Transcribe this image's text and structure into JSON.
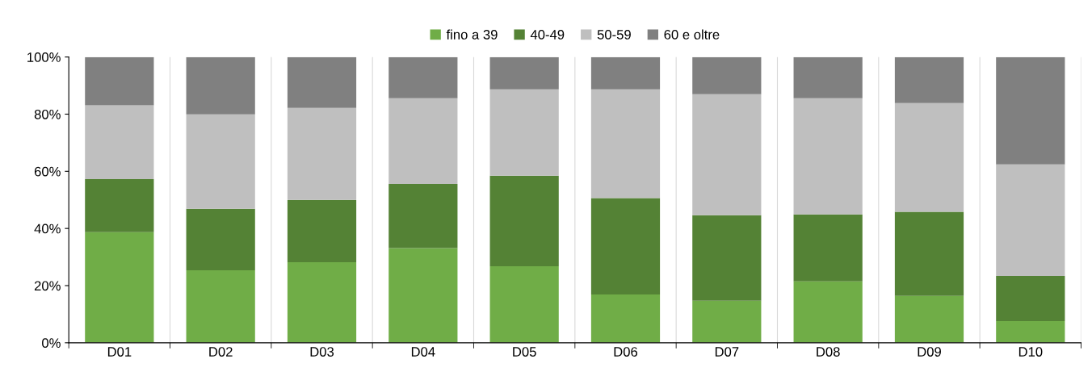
{
  "chart_data": {
    "type": "bar",
    "stacked": true,
    "categories": [
      "D01",
      "D02",
      "D03",
      "D04",
      "D05",
      "D06",
      "D07",
      "D08",
      "D09",
      "D10"
    ],
    "series": [
      {
        "name": "fino a 39",
        "color": "#70ad47",
        "values": [
          38.7,
          25.4,
          28.2,
          33.1,
          26.8,
          16.9,
          14.7,
          21.5,
          16.4,
          7.6
        ]
      },
      {
        "name": "40-49",
        "color": "#548235",
        "values": [
          18.6,
          21.5,
          21.8,
          22.5,
          31.7,
          33.7,
          29.9,
          23.4,
          29.4,
          15.8
        ]
      },
      {
        "name": "50-59",
        "color": "#bfbfbf",
        "values": [
          25.8,
          33.0,
          32.2,
          30.0,
          30.2,
          38.1,
          42.4,
          40.7,
          38.1,
          39.0
        ]
      },
      {
        "name": "60 e oltre",
        "color": "#808080",
        "values": [
          16.9,
          20.1,
          17.8,
          14.4,
          11.3,
          11.3,
          13.0,
          14.4,
          16.1,
          37.6
        ]
      }
    ],
    "ylim": [
      0,
      100
    ],
    "yticks": [
      {
        "value": 0,
        "label": "0%"
      },
      {
        "value": 20,
        "label": "20%"
      },
      {
        "value": 40,
        "label": "40%"
      },
      {
        "value": 60,
        "label": "60%"
      },
      {
        "value": 80,
        "label": "80%"
      },
      {
        "value": 100,
        "label": "100%"
      }
    ],
    "grid": "x",
    "legend": "top"
  }
}
